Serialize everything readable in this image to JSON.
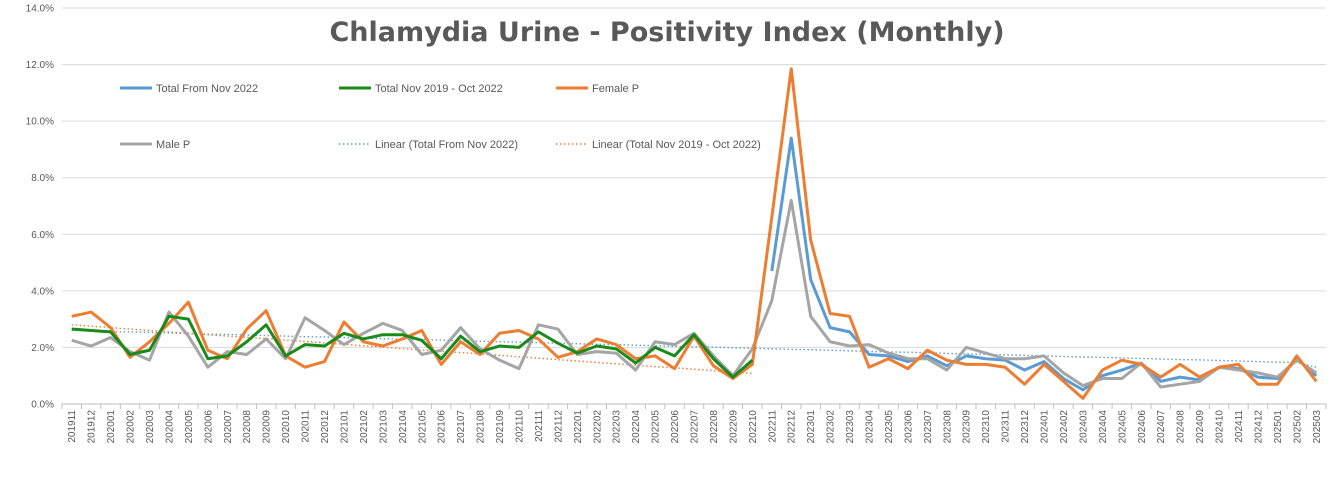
{
  "chart_data": {
    "type": "line",
    "title": "Chlamydia Urine - Positivity Index (Monthly)",
    "xlabel": "",
    "ylabel": "",
    "ylim": [
      0,
      14
    ],
    "y_ticks": [
      "0.0%",
      "2.0%",
      "4.0%",
      "6.0%",
      "8.0%",
      "10.0%",
      "12.0%",
      "14.0%"
    ],
    "grid": "horizontal",
    "legend_position": "top-left-inside",
    "categories": [
      "201911",
      "201912",
      "202001",
      "202002",
      "202003",
      "202004",
      "202005",
      "202006",
      "202007",
      "202008",
      "202009",
      "202010",
      "202011",
      "202012",
      "202101",
      "202102",
      "202103",
      "202104",
      "202105",
      "202106",
      "202107",
      "202108",
      "202109",
      "202110",
      "202111",
      "202112",
      "202201",
      "202202",
      "202203",
      "202204",
      "202205",
      "202206",
      "202207",
      "202208",
      "202209",
      "202210",
      "202211",
      "202212",
      "202301",
      "202302",
      "202303",
      "202304",
      "202305",
      "202306",
      "202307",
      "202308",
      "202309",
      "202310",
      "202311",
      "202312",
      "202401",
      "202402",
      "202403",
      "202404",
      "202405",
      "202406",
      "202407",
      "202408",
      "202409",
      "202410",
      "202411",
      "202412",
      "202501",
      "202502",
      "202503"
    ],
    "series": [
      {
        "name": "Total From Nov 2022",
        "color": "#5b9bd5",
        "dash": "solid",
        "values": [
          null,
          null,
          null,
          null,
          null,
          null,
          null,
          null,
          null,
          null,
          null,
          null,
          null,
          null,
          null,
          null,
          null,
          null,
          null,
          null,
          null,
          null,
          null,
          null,
          null,
          null,
          null,
          null,
          null,
          null,
          null,
          null,
          null,
          null,
          null,
          null,
          4.7,
          9.4,
          4.4,
          2.7,
          2.55,
          1.75,
          1.7,
          1.5,
          1.7,
          1.35,
          1.7,
          1.6,
          1.55,
          1.2,
          1.5,
          0.9,
          0.5,
          1.0,
          1.2,
          1.45,
          0.8,
          0.95,
          0.85,
          1.3,
          1.25,
          0.95,
          0.9,
          1.6,
          1.0
        ]
      },
      {
        "name": "Total Nov 2019 - Oct 2022",
        "color": "#1a8a1a",
        "dash": "solid",
        "values": [
          2.65,
          2.6,
          2.55,
          1.75,
          1.9,
          3.1,
          3.0,
          1.6,
          1.7,
          2.2,
          2.8,
          1.7,
          2.1,
          2.05,
          2.5,
          2.3,
          2.45,
          2.45,
          2.25,
          1.6,
          2.4,
          1.85,
          2.05,
          2.0,
          2.55,
          2.15,
          1.8,
          2.05,
          1.95,
          1.45,
          2.0,
          1.7,
          2.45,
          1.6,
          0.95,
          1.55,
          null,
          null,
          null,
          null,
          null,
          null,
          null,
          null,
          null,
          null,
          null,
          null,
          null,
          null,
          null,
          null,
          null,
          null,
          null,
          null,
          null,
          null,
          null,
          null,
          null,
          null,
          null,
          null,
          null
        ]
      },
      {
        "name": "Female P",
        "color": "#ed7d31",
        "dash": "solid",
        "values": [
          3.1,
          3.25,
          2.7,
          1.65,
          2.2,
          2.85,
          3.6,
          1.9,
          1.6,
          2.65,
          3.3,
          1.7,
          1.3,
          1.5,
          2.9,
          2.2,
          2.05,
          2.3,
          2.6,
          1.4,
          2.2,
          1.75,
          2.5,
          2.6,
          2.3,
          1.65,
          1.85,
          2.3,
          2.1,
          1.6,
          1.7,
          1.25,
          2.4,
          1.35,
          0.9,
          1.4,
          6.6,
          11.85,
          5.8,
          3.2,
          3.1,
          1.3,
          1.6,
          1.25,
          1.9,
          1.55,
          1.4,
          1.4,
          1.3,
          0.7,
          1.4,
          0.8,
          0.2,
          1.2,
          1.55,
          1.4,
          0.95,
          1.4,
          0.95,
          1.3,
          1.4,
          0.7,
          0.7,
          1.7,
          0.8
        ]
      },
      {
        "name": "Male P",
        "color": "#a5a5a5",
        "dash": "solid",
        "values": [
          2.25,
          2.05,
          2.35,
          1.85,
          1.55,
          3.25,
          2.4,
          1.3,
          1.85,
          1.75,
          2.3,
          1.6,
          3.05,
          2.6,
          2.1,
          2.5,
          2.85,
          2.6,
          1.75,
          1.9,
          2.7,
          1.95,
          1.55,
          1.25,
          2.8,
          2.65,
          1.75,
          1.85,
          1.8,
          1.2,
          2.2,
          2.1,
          2.5,
          1.7,
          1.0,
          1.95,
          3.65,
          7.2,
          3.1,
          2.2,
          2.05,
          2.1,
          1.8,
          1.6,
          1.6,
          1.2,
          2.0,
          1.8,
          1.6,
          1.6,
          1.7,
          1.1,
          0.65,
          0.9,
          0.9,
          1.45,
          0.6,
          0.7,
          0.8,
          1.3,
          1.2,
          1.1,
          0.95,
          1.55,
          1.1
        ]
      },
      {
        "name": "Linear (Total From Nov 2022)",
        "color": "#5b9bd5",
        "dash": "dotted",
        "values": [
          2.6,
          2.58,
          2.56,
          2.55,
          2.53,
          2.51,
          2.49,
          2.47,
          2.46,
          2.44,
          2.42,
          2.4,
          2.38,
          2.37,
          2.35,
          2.33,
          2.31,
          2.29,
          2.28,
          2.26,
          2.24,
          2.22,
          2.2,
          2.19,
          2.17,
          2.15,
          2.13,
          2.11,
          2.1,
          2.08,
          2.06,
          2.04,
          2.02,
          2.01,
          1.99,
          1.97,
          1.95,
          1.93,
          1.92,
          1.9,
          1.88,
          1.86,
          1.84,
          1.83,
          1.81,
          1.79,
          1.77,
          1.75,
          1.74,
          1.72,
          1.7,
          1.68,
          1.66,
          1.65,
          1.63,
          1.61,
          1.59,
          1.57,
          1.56,
          1.54,
          1.52,
          1.5,
          1.48,
          1.47,
          1.3
        ]
      },
      {
        "name": "Linear (Total Nov 2019 - Oct 2022)",
        "color": "#ed7d31",
        "dash": "dotted",
        "values": [
          2.8,
          2.75,
          2.7,
          2.65,
          2.6,
          2.55,
          2.5,
          2.45,
          2.4,
          2.36,
          2.31,
          2.26,
          2.21,
          2.16,
          2.11,
          2.06,
          2.01,
          1.96,
          1.91,
          1.86,
          1.82,
          1.77,
          1.72,
          1.67,
          1.62,
          1.57,
          1.52,
          1.47,
          1.42,
          1.37,
          1.32,
          1.28,
          1.23,
          1.18,
          1.13,
          1.08,
          null,
          null,
          null,
          null,
          null,
          null,
          null,
          null,
          null,
          null,
          null,
          null,
          null,
          null,
          null,
          null,
          null,
          null,
          null,
          null,
          null,
          null,
          null,
          null,
          null,
          null,
          null,
          null,
          null
        ]
      }
    ]
  }
}
